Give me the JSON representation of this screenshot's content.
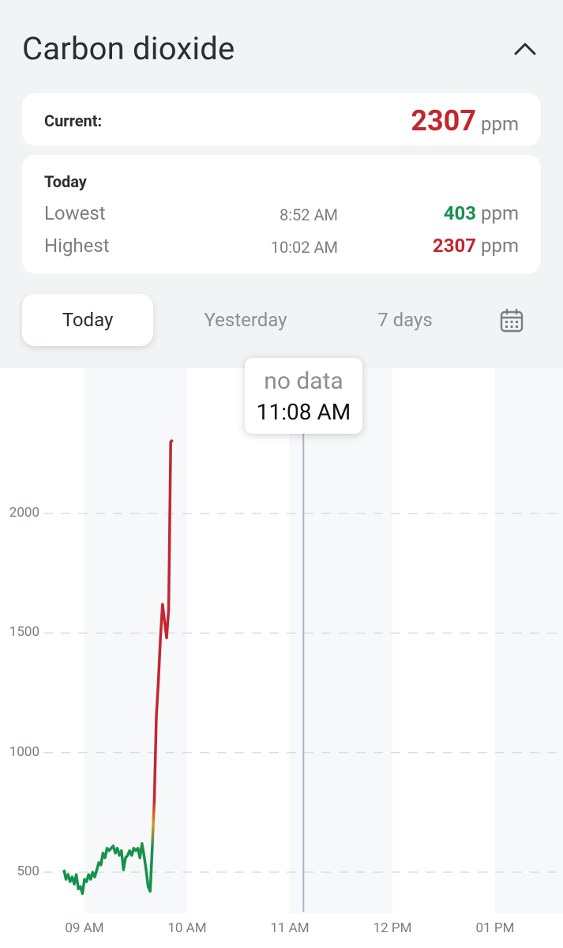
{
  "header": {
    "title": "Carbon dioxide",
    "collapse_icon": "chevron-up-icon"
  },
  "current": {
    "label": "Current:",
    "value": "2307",
    "unit": "ppm",
    "value_color": "#c4252f"
  },
  "today": {
    "title": "Today",
    "lowest": {
      "label": "Lowest",
      "time": "8:52 AM",
      "value": "403",
      "unit": "ppm",
      "color": "#15924b"
    },
    "highest": {
      "label": "Highest",
      "time": "10:02 AM",
      "value": "2307",
      "unit": "ppm",
      "color": "#c4252f"
    }
  },
  "tabs": {
    "today": "Today",
    "yesterday": "Yesterday",
    "seven_days": "7 days",
    "calendar_icon": "calendar-icon",
    "active": "Today"
  },
  "tooltip": {
    "status": "no data",
    "time": "11:08 AM"
  },
  "chart_data": {
    "type": "line",
    "x_tick_labels": [
      "09 AM",
      "10 AM",
      "11 AM",
      "12 PM",
      "01 PM"
    ],
    "y_tick_labels": [
      "500",
      "1000",
      "1500",
      "2000"
    ],
    "y_ticks": [
      500,
      1000,
      1500,
      2000
    ],
    "x_range_hours": [
      8.8,
      13.2
    ],
    "ylim": [
      330,
      2400
    ],
    "grid": "horizontal dashed",
    "cursor_time_hours": 11.133,
    "color_thresholds": {
      "good": "#15924b",
      "moderate": "#d99a1e",
      "bad": "#c4252f",
      "good_below": 600,
      "bad_above": 800
    },
    "series": [
      {
        "x": [
          8.8,
          8.82,
          8.84,
          8.86,
          8.88,
          8.9,
          8.92,
          8.94,
          8.96,
          8.98,
          9.0,
          9.02,
          9.04,
          9.06,
          9.08,
          9.1,
          9.12,
          9.14,
          9.16,
          9.18,
          9.2,
          9.22,
          9.24,
          9.26,
          9.28,
          9.3,
          9.32,
          9.34,
          9.36,
          9.38,
          9.4,
          9.42,
          9.44,
          9.46,
          9.48,
          9.5,
          9.52,
          9.54,
          9.56,
          9.58,
          9.6,
          9.62,
          9.64,
          9.66,
          9.68,
          9.7,
          9.72,
          9.74,
          9.76,
          9.78,
          9.8,
          9.82,
          9.84,
          9.86,
          9.87,
          9.88,
          9.9,
          9.93,
          9.95,
          9.97,
          10.0,
          10.02,
          10.03
        ],
        "y": [
          510,
          470,
          490,
          460,
          480,
          450,
          490,
          430,
          440,
          410,
          470,
          460,
          490,
          470,
          500,
          480,
          510,
          540,
          530,
          580,
          560,
          600,
          590,
          600,
          610,
          580,
          600,
          570,
          590,
          510,
          560,
          570,
          590,
          570,
          600,
          590,
          600,
          560,
          620,
          570,
          510,
          440,
          420,
          600,
          800,
          1150,
          1300,
          1480,
          1620,
          1550,
          1480,
          1600,
          2300,
          2307,
          2307,
          2307,
          2307,
          2307,
          2307,
          2307,
          2307,
          2307,
          2307
        ]
      }
    ]
  }
}
